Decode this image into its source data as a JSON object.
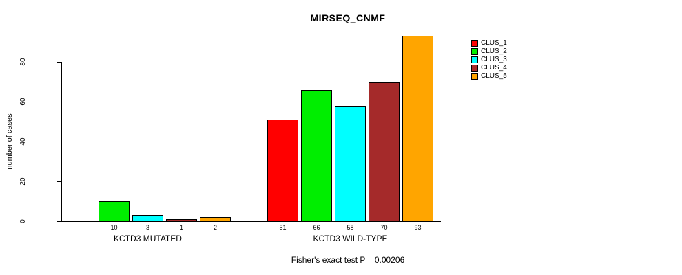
{
  "chart_data": {
    "type": "bar",
    "title": "MIRSEQ_CNMF",
    "ylabel": "number of cases",
    "xlabel": "",
    "groups": [
      "KCTD3 MUTATED",
      "KCTD3 WILD-TYPE"
    ],
    "series": [
      {
        "name": "CLUS_1",
        "color": "#FF0000",
        "values": [
          0,
          51
        ]
      },
      {
        "name": "CLUS_2",
        "color": "#00EE00",
        "values": [
          10,
          66
        ]
      },
      {
        "name": "CLUS_3",
        "color": "#00FFFF",
        "values": [
          3,
          58
        ]
      },
      {
        "name": "CLUS_4",
        "color": "#A52A2A",
        "values": [
          1,
          70
        ]
      },
      {
        "name": "CLUS_5",
        "color": "#FFA500",
        "values": [
          2,
          93
        ]
      }
    ],
    "bar_value_labels": {
      "KCTD3 MUTATED": [
        "10",
        "3",
        "1",
        "2"
      ],
      "KCTD3 WILD-TYPE": [
        "51",
        "66",
        "58",
        "70",
        "93"
      ]
    },
    "yticks": [
      0,
      20,
      40,
      60,
      80
    ],
    "ylim": [
      0,
      93
    ],
    "grid": false,
    "legend_position": "right",
    "annotation": "Fisher's exact test P = 0.00206"
  }
}
